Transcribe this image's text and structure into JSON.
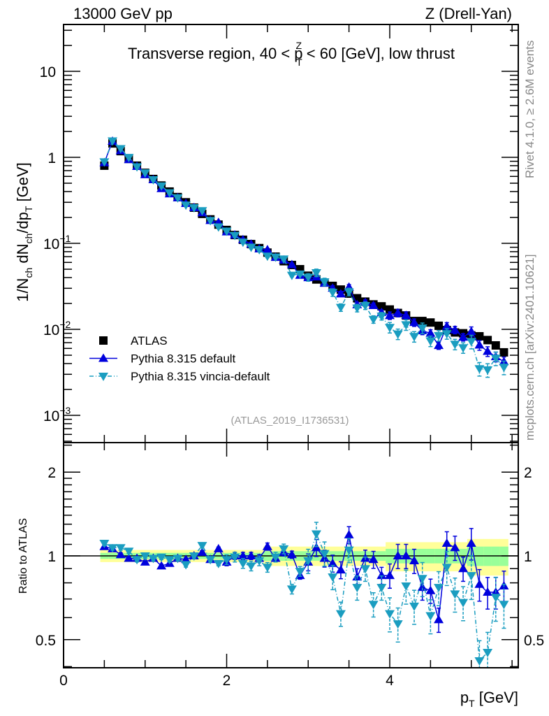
{
  "header": {
    "left": "13000 GeV pp",
    "right": "Z (Drell-Yan)"
  },
  "side_labels": {
    "rivet": "Rivet 4.1.0, ≥ 2.6M events",
    "mcplots": "mcplots.cern.ch [arXiv:2401.10621]"
  },
  "plot_title": {
    "pre": "Transverse region, 40 < p",
    "sub": "T",
    "sup": "Z",
    "post": " < 60 [GeV], low thrust"
  },
  "y_label": {
    "a": "1/N",
    "a_sub": "ch",
    "b": " dN",
    "b_sub": "ch",
    "c": "/dp",
    "c_sub": "T",
    "d": " [GeV]"
  },
  "x_label": {
    "p": "p",
    "sub": "T",
    "unit": " [GeV]"
  },
  "ratio_label": "Ratio to ATLAS",
  "analysis_id": "(ATLAS_2019_I1736531)",
  "legend": [
    {
      "label": "ATLAS",
      "marker": "square",
      "color": "#000000"
    },
    {
      "label": "Pythia 8.315 default",
      "marker": "triangle-up",
      "color": "#0000dd"
    },
    {
      "label": "Pythia 8.315 vincia-default",
      "marker": "triangle-down",
      "color": "#1a9dc0"
    }
  ],
  "colors": {
    "band_stat": "#99ff99",
    "band_total": "#ffff99"
  },
  "y_ticks": [
    {
      "value": 10,
      "base": "10",
      "exp": ""
    },
    {
      "value": 1,
      "base": "1",
      "exp": ""
    },
    {
      "value": 0.1,
      "base": "10",
      "exp": "−1"
    },
    {
      "value": 0.01,
      "base": "10",
      "exp": "−2"
    },
    {
      "value": 0.001,
      "base": "10",
      "exp": "−3"
    }
  ],
  "ratio_ticks": [
    {
      "value": 0.5,
      "label": "0.5"
    },
    {
      "value": 1,
      "label": "1"
    },
    {
      "value": 2,
      "label": "2"
    }
  ],
  "x_ticks": [
    {
      "value": 0,
      "label": "0"
    },
    {
      "value": 2,
      "label": "2"
    },
    {
      "value": 4,
      "label": "4"
    }
  ],
  "chart_data": {
    "type": "scatter",
    "title": "Transverse region, 40 < pT^Z < 60 [GeV], low thrust",
    "xlabel": "pT [GeV]",
    "ylabel": "1/Nch dNch/dpT [GeV]",
    "ratio_ylabel": "Ratio to ATLAS",
    "xlim": [
      0,
      5.57
    ],
    "ylim": [
      0.00049,
      35
    ],
    "yscale": "log",
    "ratio_ylim": [
      0.4,
      2.55
    ],
    "legend_position": "lower-left",
    "x": [
      0.5,
      0.6,
      0.7,
      0.8,
      0.9,
      1.0,
      1.1,
      1.2,
      1.3,
      1.4,
      1.5,
      1.6,
      1.7,
      1.8,
      1.9,
      2.0,
      2.1,
      2.2,
      2.3,
      2.4,
      2.5,
      2.6,
      2.7,
      2.8,
      2.9,
      3.0,
      3.1,
      3.2,
      3.3,
      3.4,
      3.5,
      3.6,
      3.7,
      3.8,
      3.9,
      4.0,
      4.1,
      4.2,
      4.3,
      4.4,
      4.5,
      4.6,
      4.7,
      4.8,
      4.9,
      5.0,
      5.1,
      5.2,
      5.3,
      5.4
    ],
    "atlas": [
      0.8,
      1.45,
      1.18,
      0.96,
      0.8,
      0.66,
      0.56,
      0.47,
      0.4,
      0.345,
      0.3,
      0.26,
      0.22,
      0.19,
      0.165,
      0.143,
      0.125,
      0.11,
      0.098,
      0.088,
      0.078,
      0.07,
      0.062,
      0.056,
      0.05,
      0.042,
      0.038,
      0.035,
      0.032,
      0.029,
      0.026,
      0.023,
      0.021,
      0.0195,
      0.0185,
      0.017,
      0.0155,
      0.0145,
      0.0125,
      0.0125,
      0.012,
      0.011,
      0.0098,
      0.0092,
      0.009,
      0.0085,
      0.0083,
      0.0075,
      0.0065,
      0.0054
    ],
    "atlas_band_stat_rel": [
      0.025,
      0.025,
      0.025,
      0.025,
      0.025,
      0.025,
      0.025,
      0.025,
      0.025,
      0.025,
      0.025,
      0.025,
      0.025,
      0.025,
      0.025,
      0.025,
      0.025,
      0.025,
      0.025,
      0.025,
      0.04,
      0.04,
      0.04,
      0.04,
      0.04,
      0.04,
      0.04,
      0.04,
      0.04,
      0.04,
      0.04,
      0.04,
      0.04,
      0.04,
      0.04,
      0.06,
      0.06,
      0.06,
      0.06,
      0.06,
      0.06,
      0.06,
      0.06,
      0.06,
      0.06,
      0.08,
      0.08,
      0.08,
      0.08,
      0.08
    ],
    "atlas_band_total_rel": [
      0.05,
      0.05,
      0.05,
      0.05,
      0.05,
      0.05,
      0.05,
      0.05,
      0.05,
      0.05,
      0.05,
      0.05,
      0.05,
      0.05,
      0.05,
      0.05,
      0.05,
      0.05,
      0.05,
      0.05,
      0.08,
      0.08,
      0.08,
      0.08,
      0.08,
      0.08,
      0.08,
      0.08,
      0.08,
      0.08,
      0.08,
      0.08,
      0.08,
      0.08,
      0.08,
      0.12,
      0.12,
      0.12,
      0.12,
      0.12,
      0.12,
      0.12,
      0.12,
      0.12,
      0.12,
      0.15,
      0.15,
      0.15,
      0.15,
      0.15
    ],
    "series": [
      {
        "name": "Pythia 8.315 default",
        "ratio": [
          1.08,
          1.06,
          1.01,
          0.98,
          0.98,
          0.95,
          0.98,
          0.92,
          0.94,
          0.98,
          0.97,
          1.0,
          1.03,
          0.97,
          1.06,
          0.95,
          1.0,
          1.0,
          1.0,
          0.98,
          1.08,
          0.98,
          1.03,
          1.01,
          0.85,
          0.95,
          1.07,
          0.98,
          0.94,
          0.89,
          1.19,
          0.84,
          0.98,
          0.97,
          0.85,
          0.85,
          1.0,
          1.0,
          0.96,
          0.77,
          0.75,
          0.59,
          1.11,
          1.07,
          0.9,
          1.11,
          0.79,
          0.74,
          0.74,
          0.78
        ],
        "rel_err": [
          0.015,
          0.015,
          0.015,
          0.015,
          0.015,
          0.015,
          0.015,
          0.015,
          0.015,
          0.015,
          0.015,
          0.015,
          0.015,
          0.015,
          0.015,
          0.03,
          0.03,
          0.03,
          0.03,
          0.03,
          0.03,
          0.03,
          0.03,
          0.03,
          0.03,
          0.07,
          0.07,
          0.07,
          0.07,
          0.07,
          0.07,
          0.07,
          0.07,
          0.07,
          0.07,
          0.1,
          0.1,
          0.1,
          0.1,
          0.1,
          0.1,
          0.1,
          0.1,
          0.1,
          0.1,
          0.13,
          0.13,
          0.13,
          0.13,
          0.13
        ]
      },
      {
        "name": "Pythia 8.315 vincia-default",
        "ratio": [
          1.11,
          1.07,
          1.07,
          1.04,
          0.97,
          1.0,
          0.98,
          0.99,
          0.97,
          0.98,
          0.93,
          1.0,
          1.09,
          0.97,
          0.94,
          0.97,
          0.99,
          0.94,
          0.92,
          0.96,
          0.91,
          0.99,
          1.06,
          0.76,
          0.88,
          0.96,
          1.2,
          1.02,
          0.84,
          0.62,
          1.05,
          0.77,
          0.9,
          0.67,
          0.77,
          0.62,
          0.57,
          0.78,
          0.66,
          0.83,
          0.61,
          0.77,
          0.91,
          0.73,
          0.68,
          0.85,
          0.42,
          0.45,
          0.71,
          0.67
        ],
        "rel_err": [
          0.02,
          0.02,
          0.02,
          0.02,
          0.02,
          0.02,
          0.02,
          0.02,
          0.02,
          0.02,
          0.02,
          0.02,
          0.02,
          0.02,
          0.02,
          0.04,
          0.04,
          0.04,
          0.04,
          0.04,
          0.04,
          0.04,
          0.04,
          0.04,
          0.04,
          0.1,
          0.1,
          0.1,
          0.1,
          0.1,
          0.1,
          0.1,
          0.1,
          0.1,
          0.1,
          0.14,
          0.14,
          0.14,
          0.14,
          0.14,
          0.14,
          0.14,
          0.14,
          0.14,
          0.14,
          0.18,
          0.18,
          0.18,
          0.18,
          0.18
        ]
      }
    ]
  }
}
